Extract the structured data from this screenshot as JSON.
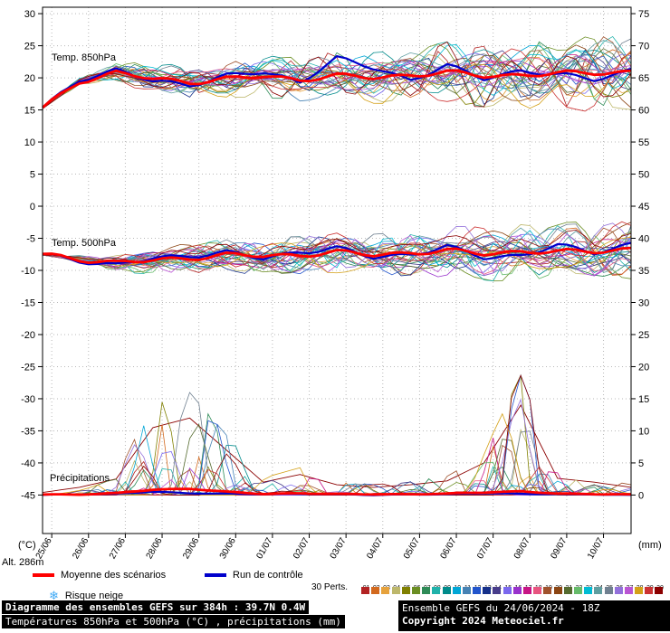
{
  "chart_data": {
    "type": "line",
    "title": "Diagramme des ensembles GEFS sur 384h : 39.7N 0.4W",
    "subtitle": "Températures 850hPa et 500hPa (°C) , précipitations (mm)",
    "alt_label": "Alt. 286m",
    "x_dates": [
      "25/06",
      "26/06",
      "27/06",
      "28/06",
      "29/06",
      "30/06",
      "01/07",
      "02/07",
      "03/07",
      "04/07",
      "05/07",
      "06/07",
      "07/07",
      "08/07",
      "09/07",
      "10/07"
    ],
    "x_hours": {
      "start": 0,
      "end": 384,
      "values_every_hours": 24
    },
    "yaxis_left": {
      "unit": "(°C)",
      "ticks": [
        30,
        25,
        20,
        15,
        10,
        5,
        0,
        -5,
        -10,
        -15,
        -20,
        -25,
        -30,
        -35,
        -40,
        -45
      ],
      "range": [
        -51,
        31
      ]
    },
    "yaxis_right": {
      "unit": "(mm)",
      "ticks": [
        75,
        70,
        65,
        60,
        55,
        50,
        45,
        40,
        35,
        30,
        25,
        20,
        15,
        10,
        5,
        0
      ],
      "range": [
        -6,
        76
      ]
    },
    "members_count": 30,
    "grid": true,
    "panels": [
      {
        "id": "t850",
        "title": "Temp. 850hPa",
        "unit": "°C",
        "mean": [
          15.2,
          19.5,
          20.8,
          19.8,
          19.4,
          19.8,
          20.2,
          19.8,
          20.3,
          20.0,
          20.5,
          20.8,
          20.3,
          20.5,
          20.6,
          20.8,
          21.0
        ],
        "control": [
          15.2,
          19.8,
          21.2,
          19.4,
          19.0,
          20.3,
          20.8,
          19.5,
          23.0,
          21.5,
          19.8,
          21.8,
          19.9,
          21.2,
          20.4,
          19.8,
          21.3
        ],
        "spread": [
          0.3,
          0.9,
          1.3,
          1.6,
          1.9,
          2.1,
          2.3,
          2.6,
          2.9,
          3.1,
          3.3,
          3.6,
          3.9,
          4.1,
          4.3,
          4.6,
          4.9
        ]
      },
      {
        "id": "t500",
        "title": "Temp. 500hPa",
        "unit": "°C",
        "mean": [
          -7.6,
          -8.2,
          -8.8,
          -8.5,
          -8.0,
          -7.6,
          -7.8,
          -7.5,
          -7.2,
          -7.6,
          -7.2,
          -7.0,
          -7.4,
          -7.0,
          -7.2,
          -7.0,
          -6.6
        ],
        "control": [
          -7.6,
          -8.4,
          -9.2,
          -8.2,
          -7.6,
          -7.2,
          -8.2,
          -7.0,
          -6.6,
          -8.0,
          -7.4,
          -6.4,
          -8.0,
          -7.6,
          -6.2,
          -7.2,
          -5.8
        ],
        "spread": [
          0.3,
          0.7,
          1.1,
          1.4,
          1.7,
          1.9,
          2.1,
          2.3,
          2.5,
          2.7,
          2.9,
          3.1,
          3.3,
          3.5,
          3.6,
          3.8,
          4.0
        ]
      },
      {
        "id": "precip",
        "title": "Précipitations",
        "unit": "mm",
        "baseline_left_axis": -45,
        "mean": [
          0.05,
          0.1,
          0.3,
          0.8,
          1.0,
          0.5,
          0.15,
          0.3,
          0.15,
          0.1,
          0.15,
          0.2,
          0.4,
          0.6,
          0.2,
          0.15,
          0.1
        ],
        "control": [
          0,
          0.1,
          0.2,
          0.5,
          0.3,
          0.2,
          0.1,
          0.2,
          0.1,
          0,
          0.1,
          0.1,
          0.3,
          0.2,
          0.1,
          0.1,
          0
        ],
        "max_envelope": [
          0.4,
          1.2,
          2.5,
          10.5,
          12.0,
          7.0,
          2.0,
          3.2,
          1.6,
          1.2,
          1.6,
          2.2,
          5.0,
          14.0,
          2.6,
          2.0,
          1.2
        ]
      }
    ]
  },
  "legend": {
    "mean_label": "Moyenne des scénarios",
    "mean_color": "#ff0000",
    "control_label": "Run de contrôle",
    "control_color": "#0000cc",
    "perts_label": "30 Perts.",
    "snow_label": "Risque neige",
    "snow_icon": "❄",
    "member_numbers": [
      "01",
      "02",
      "03",
      "04",
      "05",
      "06",
      "07",
      "08",
      "09",
      "10",
      "11",
      "12",
      "13",
      "14",
      "15",
      "16",
      "17",
      "18",
      "19",
      "20",
      "21",
      "22",
      "23",
      "24",
      "25",
      "26",
      "27",
      "28",
      "29",
      "30"
    ],
    "member_colors": [
      "#b22222",
      "#d2691e",
      "#e6a23c",
      "#bdb76b",
      "#808000",
      "#6b8e23",
      "#2e8b57",
      "#20b2aa",
      "#008b8b",
      "#00a6d6",
      "#4682b4",
      "#2255cc",
      "#16308a",
      "#483d8b",
      "#7b68ee",
      "#9932cc",
      "#c71585",
      "#e75480",
      "#a0522d",
      "#8b4513",
      "#556b2f",
      "#66bb6a",
      "#00bcd4",
      "#5f9ea0",
      "#708090",
      "#9370db",
      "#ba55d3",
      "#d4a017",
      "#cc3333",
      "#8b0000"
    ]
  },
  "footer": {
    "line1": "Diagramme des ensembles GEFS sur 384h : 39.7N 0.4W",
    "line2": "Températures 850hPa et 500hPa (°C) , précipitations (mm)",
    "right1": "Ensemble GEFS du 24/06/2024 - 18Z",
    "right2": "Copyright 2024 Meteociel.fr"
  }
}
